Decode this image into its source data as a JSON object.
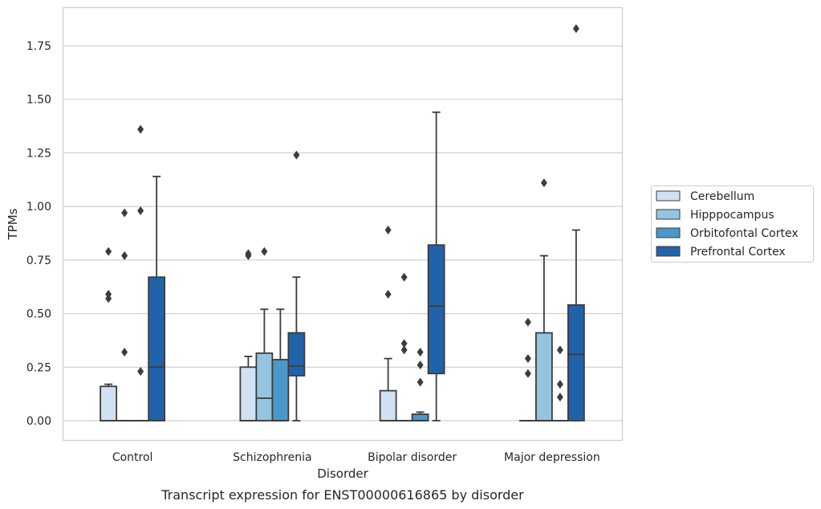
{
  "chart_data": {
    "type": "box",
    "title": "",
    "xlabel": "Disorder",
    "ylabel": "TPMs",
    "caption": "Transcript expression for ENST00000616865 by disorder",
    "ylim": [
      -0.09,
      1.93
    ],
    "yticks": [
      0.0,
      0.25,
      0.5,
      0.75,
      1.0,
      1.25,
      1.5,
      1.75
    ],
    "ytick_labels": [
      "0.00",
      "0.25",
      "0.50",
      "0.75",
      "1.00",
      "1.25",
      "1.50",
      "1.75"
    ],
    "grid": "horizontal",
    "legend_position": "right",
    "categories": [
      "Control",
      "Schizophrenia",
      "Bipolar disorder",
      "Major depression"
    ],
    "series": [
      {
        "name": "Cerebellum",
        "color": "#d0e1f2",
        "boxes": [
          {
            "q1": 0.0,
            "median": 0.0,
            "q3": 0.16,
            "whisker_low": 0.0,
            "whisker_high": 0.17,
            "outliers": [
              0.79,
              0.59,
              0.57
            ]
          },
          {
            "q1": 0.0,
            "median": 0.0,
            "q3": 0.25,
            "whisker_low": 0.0,
            "whisker_high": 0.3,
            "outliers": [
              0.78,
              0.77
            ]
          },
          {
            "q1": 0.0,
            "median": 0.0,
            "q3": 0.14,
            "whisker_low": 0.0,
            "whisker_high": 0.29,
            "outliers": [
              0.89,
              0.59
            ]
          },
          {
            "q1": 0.0,
            "median": 0.0,
            "q3": 0.0,
            "whisker_low": 0.0,
            "whisker_high": 0.0,
            "outliers": [
              0.46,
              0.29,
              0.22
            ]
          }
        ]
      },
      {
        "name": "Hipppocampus",
        "color": "#94c4df",
        "boxes": [
          {
            "q1": 0.0,
            "median": 0.0,
            "q3": 0.0,
            "whisker_low": 0.0,
            "whisker_high": 0.0,
            "outliers": [
              0.97,
              0.77,
              0.32
            ]
          },
          {
            "q1": 0.0,
            "median": 0.105,
            "q3": 0.315,
            "whisker_low": 0.0,
            "whisker_high": 0.52,
            "outliers": [
              0.79
            ]
          },
          {
            "q1": 0.0,
            "median": 0.0,
            "q3": 0.0,
            "whisker_low": 0.0,
            "whisker_high": 0.0,
            "outliers": [
              0.67,
              0.36,
              0.33
            ]
          },
          {
            "q1": 0.0,
            "median": 0.0,
            "q3": 0.41,
            "whisker_low": 0.0,
            "whisker_high": 0.77,
            "outliers": [
              1.11
            ]
          }
        ]
      },
      {
        "name": "Orbitofontal Cortex",
        "color": "#4a98c9",
        "boxes": [
          {
            "q1": 0.0,
            "median": 0.0,
            "q3": 0.0,
            "whisker_low": 0.0,
            "whisker_high": 0.0,
            "outliers": [
              1.36,
              0.98,
              0.23
            ]
          },
          {
            "q1": 0.0,
            "median": 0.0,
            "q3": 0.285,
            "whisker_low": 0.0,
            "whisker_high": 0.52,
            "outliers": []
          },
          {
            "q1": 0.0,
            "median": 0.0,
            "q3": 0.03,
            "whisker_low": 0.0,
            "whisker_high": 0.04,
            "outliers": [
              0.32,
              0.26,
              0.18
            ]
          },
          {
            "q1": 0.0,
            "median": 0.0,
            "q3": 0.0,
            "whisker_low": 0.0,
            "whisker_high": 0.0,
            "outliers": [
              0.33,
              0.17,
              0.11
            ]
          }
        ]
      },
      {
        "name": "Prefrontal Cortex",
        "color": "#2163aa",
        "boxes": [
          {
            "q1": 0.0,
            "median": 0.25,
            "q3": 0.67,
            "whisker_low": 0.0,
            "whisker_high": 1.14,
            "outliers": []
          },
          {
            "q1": 0.21,
            "median": 0.255,
            "q3": 0.41,
            "whisker_low": 0.0,
            "whisker_high": 0.67,
            "outliers": [
              1.24
            ]
          },
          {
            "q1": 0.22,
            "median": 0.535,
            "q3": 0.82,
            "whisker_low": 0.0,
            "whisker_high": 1.44,
            "outliers": []
          },
          {
            "q1": 0.0,
            "median": 0.31,
            "q3": 0.54,
            "whisker_low": 0.0,
            "whisker_high": 0.89,
            "outliers": [
              1.83
            ]
          }
        ]
      }
    ]
  }
}
